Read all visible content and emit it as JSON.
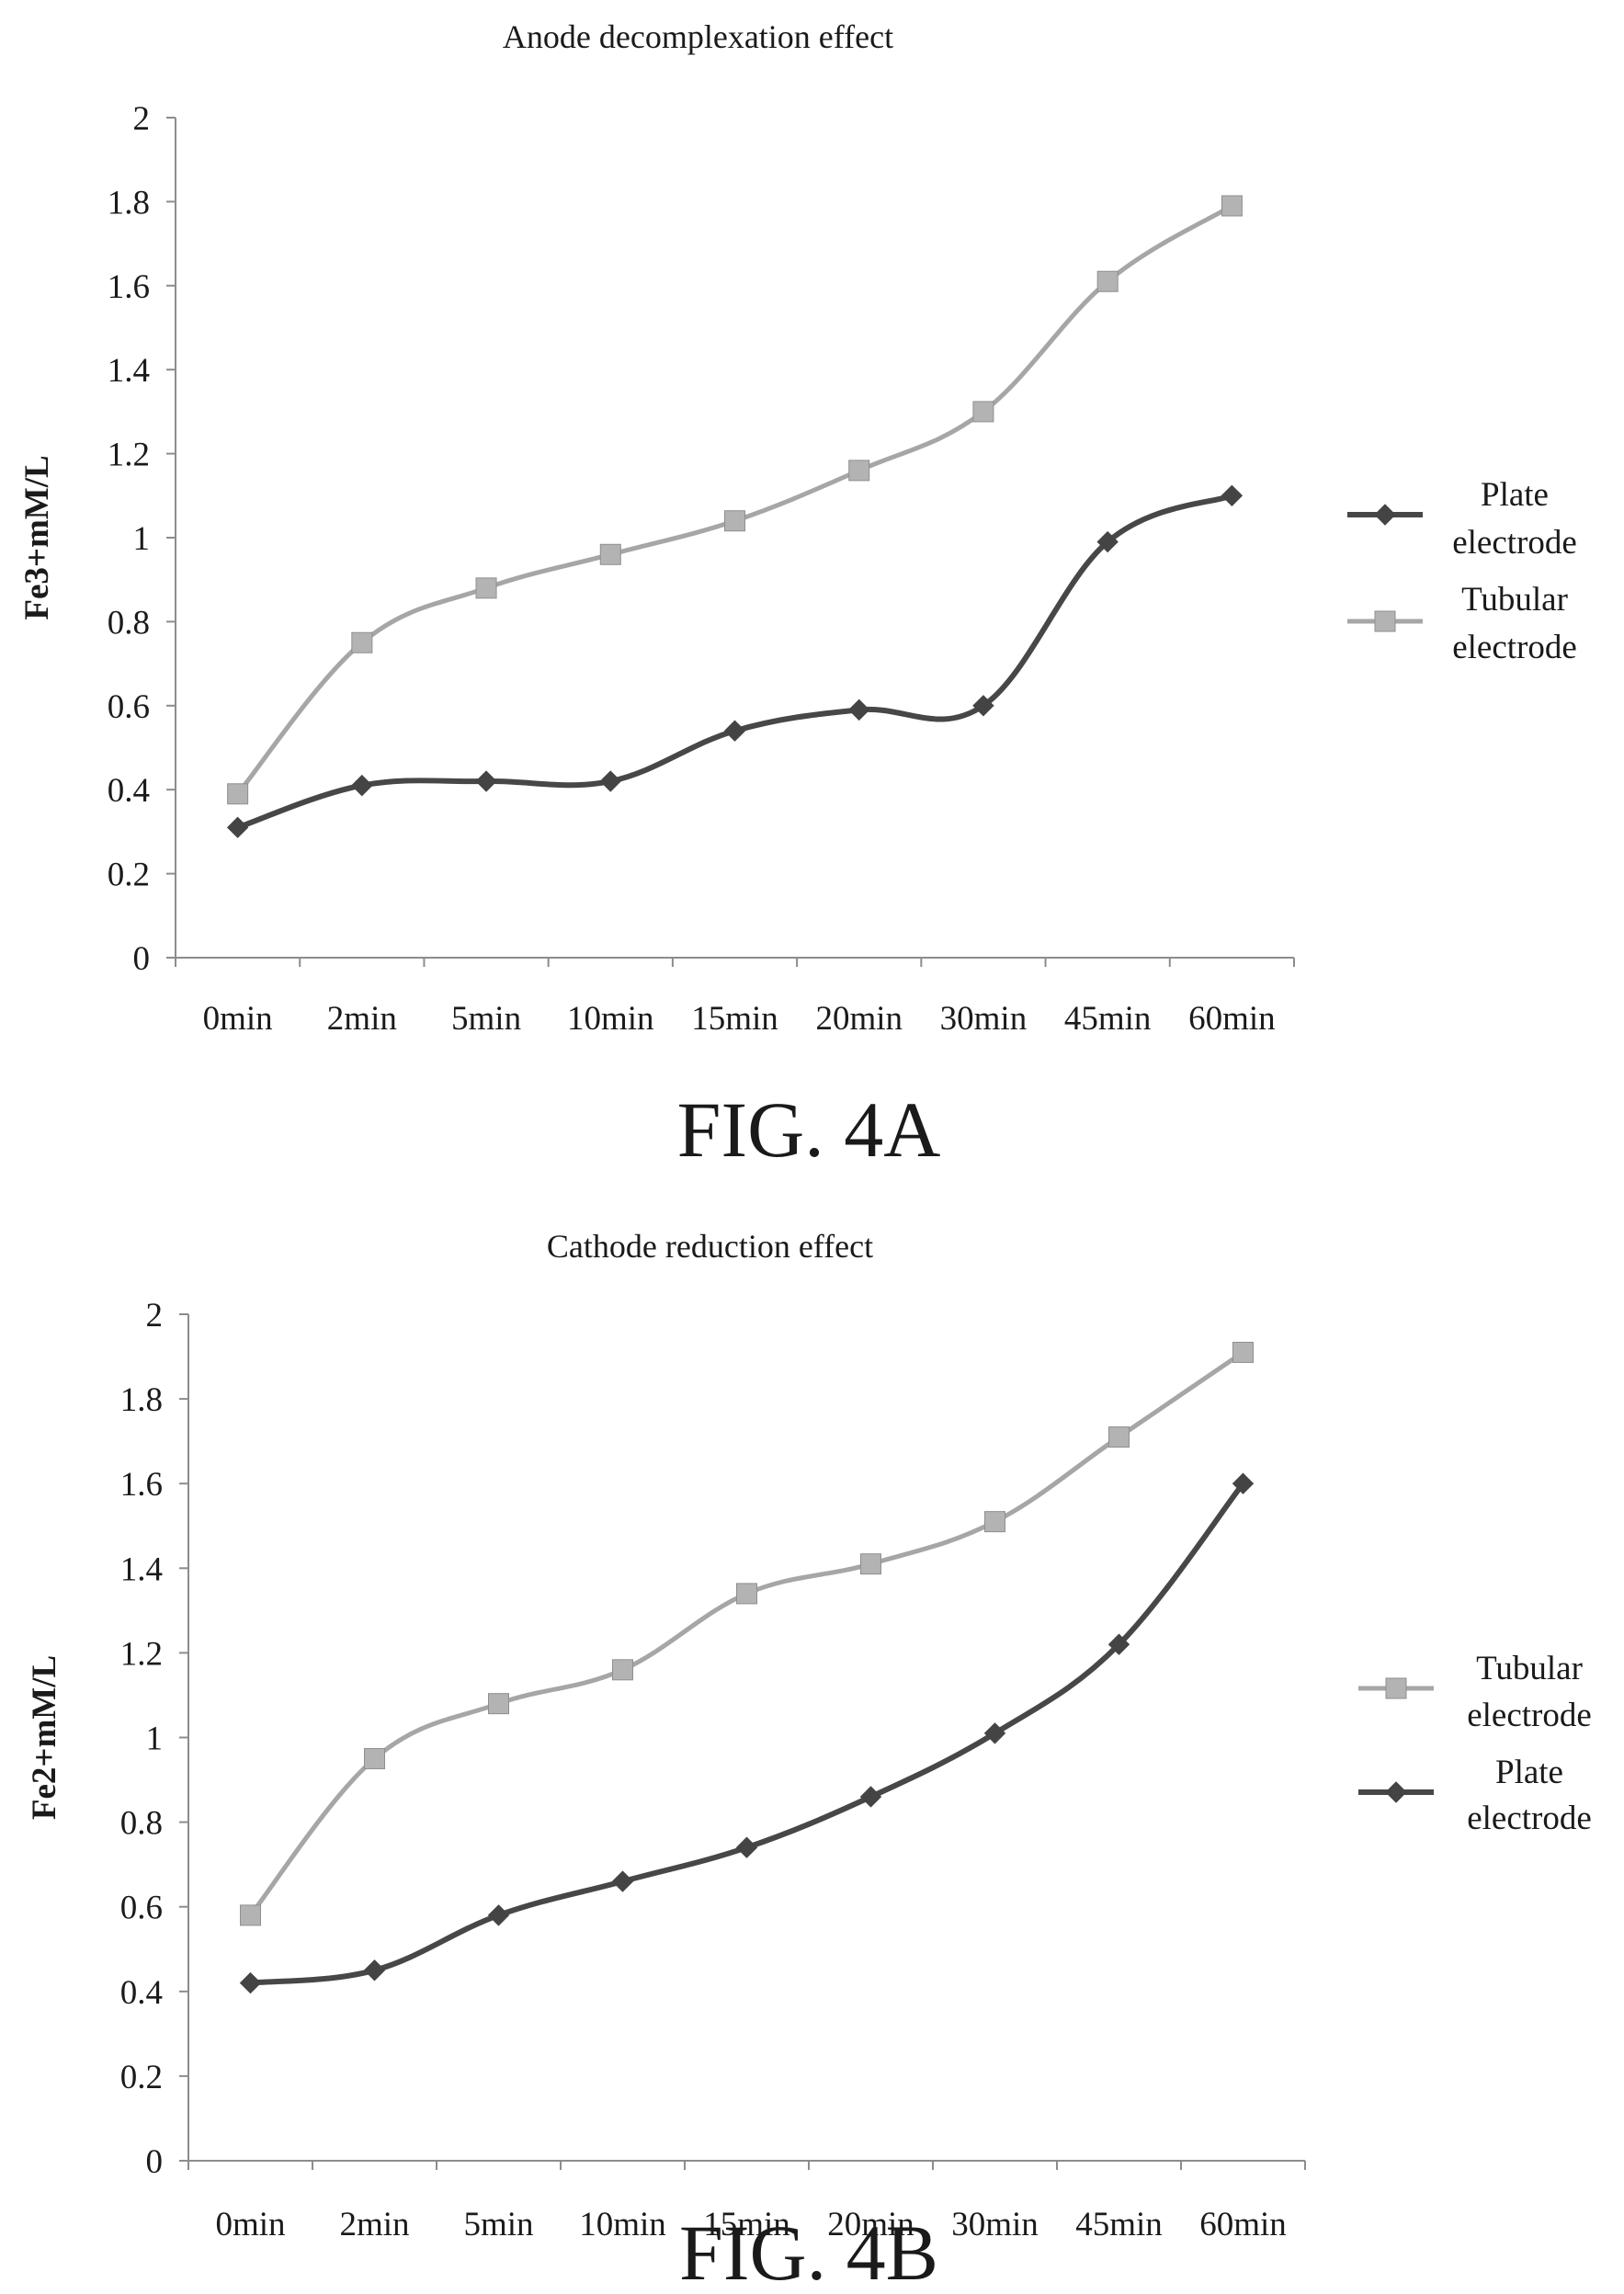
{
  "chart_data": [
    {
      "type": "line",
      "title": "Anode decomplexation effect",
      "ylabel": "Fe3+mM/L",
      "xlabel": "",
      "categories": [
        "0min",
        "2min",
        "5min",
        "10min",
        "15min",
        "20min",
        "30min",
        "45min",
        "60min"
      ],
      "ylim": [
        0,
        2
      ],
      "yticks": [
        "0",
        "0.2",
        "0.4",
        "0.6",
        "0.8",
        "1",
        "1.2",
        "1.4",
        "1.6",
        "1.8",
        "2"
      ],
      "grid": false,
      "legend_position": "right",
      "series": [
        {
          "name": "Plate electrode",
          "color": "#474747",
          "marker": "diamond",
          "values": [
            0.31,
            0.41,
            0.42,
            0.42,
            0.54,
            0.59,
            0.6,
            0.99,
            1.1
          ]
        },
        {
          "name": "Tubular electrode",
          "color": "#a6a6a6",
          "marker": "square",
          "values": [
            0.39,
            0.75,
            0.88,
            0.96,
            1.04,
            1.16,
            1.3,
            1.61,
            1.79
          ]
        }
      ],
      "legend_order": [
        0,
        1
      ],
      "figure_label": "FIG. 4A"
    },
    {
      "type": "line",
      "title": "Cathode reduction effect",
      "ylabel": "Fe2+mM/L",
      "xlabel": "",
      "categories": [
        "0min",
        "2min",
        "5min",
        "10min",
        "15min",
        "20min",
        "30min",
        "45min",
        "60min"
      ],
      "ylim": [
        0,
        2
      ],
      "yticks": [
        "0",
        "0.2",
        "0.4",
        "0.6",
        "0.8",
        "1",
        "1.2",
        "1.4",
        "1.6",
        "1.8",
        "2"
      ],
      "grid": false,
      "legend_position": "right",
      "series": [
        {
          "name": "Plate electrode",
          "color": "#474747",
          "marker": "diamond",
          "values": [
            0.42,
            0.45,
            0.58,
            0.66,
            0.74,
            0.86,
            1.01,
            1.22,
            1.6
          ]
        },
        {
          "name": "Tubular electrode",
          "color": "#a6a6a6",
          "marker": "square",
          "values": [
            0.58,
            0.95,
            1.08,
            1.16,
            1.34,
            1.41,
            1.51,
            1.71,
            1.91
          ]
        }
      ],
      "legend_order": [
        1,
        0
      ],
      "figure_label": "FIG. 4B"
    }
  ]
}
